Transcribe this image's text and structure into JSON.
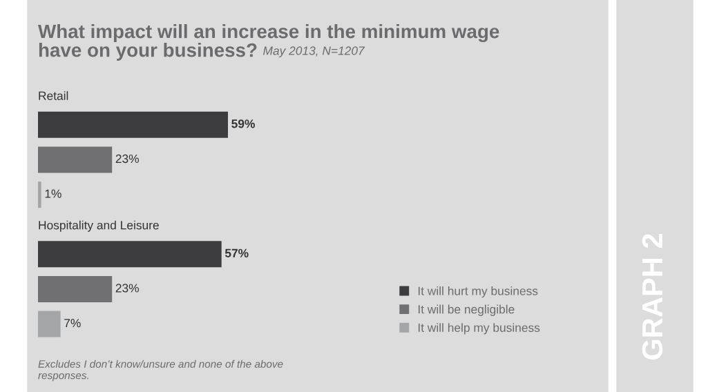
{
  "chart_data": {
    "type": "bar",
    "orientation": "horizontal",
    "title": "What impact will an increase in the minimum wage have on your business?",
    "subtitle": "May 2013, N=1207",
    "categories": [
      "Retail",
      "Hospitality and Leisure"
    ],
    "series": [
      {
        "name": "It will hurt my business",
        "color": "#3c3c3e",
        "values": [
          59,
          57
        ],
        "value_labels": [
          "59%",
          "57%"
        ]
      },
      {
        "name": "It will be negligible",
        "color": "#707072",
        "values": [
          23,
          23
        ],
        "value_labels": [
          "23%",
          "23%"
        ]
      },
      {
        "name": "It will help my business",
        "color": "#a4a5a7",
        "values": [
          1,
          7
        ],
        "value_labels": [
          "1%",
          "7%"
        ]
      }
    ],
    "legend": "bottom right",
    "annotations": [
      "Excludes I don’t know/unsure and none of the above responses.",
      "GRAPH 2"
    ]
  }
}
